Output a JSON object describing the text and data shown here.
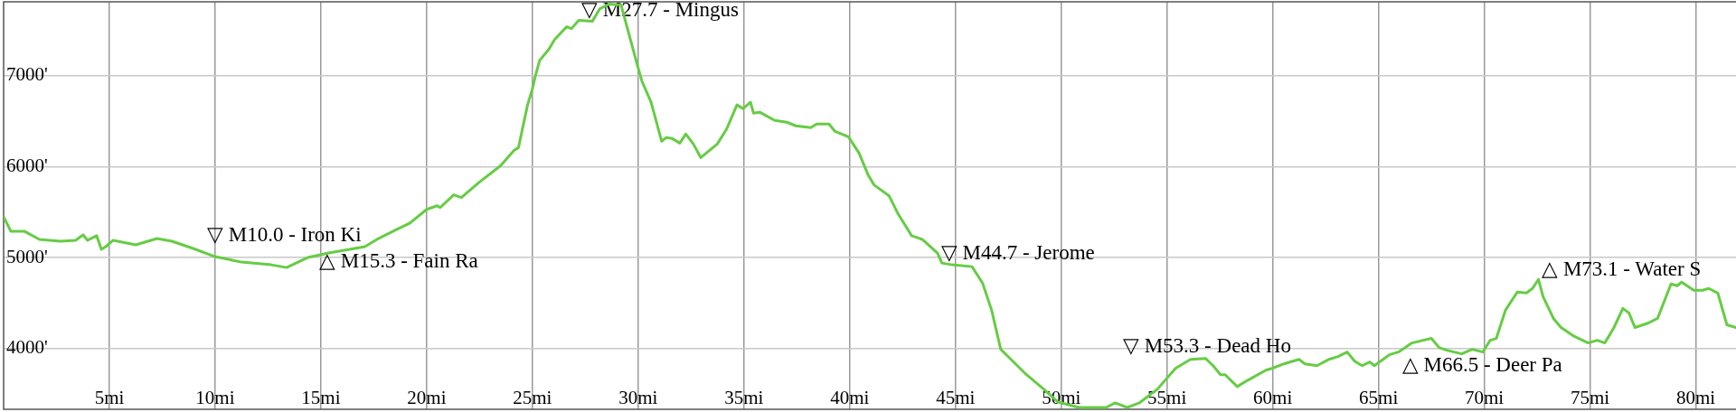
{
  "chart_data": {
    "type": "line",
    "x": [
      0,
      0.34,
      0.98,
      1.69,
      2.69,
      3.4,
      3.76,
      3.97,
      4.4,
      4.62,
      4.83,
      5.18,
      6.25,
      7.25,
      7.96,
      8.96,
      10,
      11.24,
      12.66,
      13.38,
      14.37,
      15.37,
      17.08,
      17.65,
      18.5,
      19.21,
      20,
      20.5,
      20.64,
      21.28,
      21.64,
      22.49,
      23.49,
      24.13,
      24.34,
      24.77,
      24.98,
      25.13,
      25.34,
      25.77,
      26.05,
      26.62,
      26.84,
      27.19,
      27.83,
      28.19,
      28.62,
      29.19,
      29.47,
      29.97,
      30.18,
      30.61,
      31.11,
      31.32,
      31.61,
      31.97,
      32.25,
      32.61,
      32.96,
      33.74,
      34.17,
      34.67,
      34.96,
      35.31,
      35.45,
      35.74,
      36.45,
      37.02,
      37.45,
      38.16,
      38.44,
      39.02,
      39.3,
      39.94,
      40.44,
      40.87,
      41.15,
      41.86,
      42.29,
      42.93,
      43.43,
      44.15,
      44.36,
      44.85,
      45.78,
      46.28,
      46.71,
      47.14,
      47.71,
      48.27,
      49.13,
      49.84,
      50.84,
      52.12,
      52.55,
      53.12,
      53.69,
      54.54,
      55.4,
      56.11,
      56.82,
      57.18,
      57.53,
      57.75,
      58.32,
      58.82,
      59.67,
      59.96,
      60.53,
      60.81,
      61.24,
      61.52,
      62.09,
      62.66,
      63.09,
      63.52,
      63.87,
      64.23,
      64.59,
      64.8,
      65.51,
      65.94,
      66.58,
      67.5,
      67.86,
      68.22,
      68.93,
      69.43,
      69.93,
      70.28,
      70.57,
      71,
      71.56,
      71.99,
      72.28,
      72.56,
      72.78,
      73.27,
      73.63,
      74.2,
      74.91,
      75.34,
      75.7,
      76.13,
      76.55,
      76.84,
      77.12,
      77.76,
      78.19,
      78.83,
      79.12,
      79.33,
      79.9,
      80.33,
      80.61,
      81.04,
      81.47,
      81.9
    ],
    "series": [
      {
        "color": "#66cc44",
        "values": [
          5450,
          5290,
          5290,
          5200,
          5180,
          5190,
          5250,
          5190,
          5240,
          5090,
          5120,
          5190,
          5140,
          5210,
          5180,
          5100,
          5010,
          4950,
          4920,
          4890,
          5000,
          5050,
          5120,
          5200,
          5300,
          5380,
          5530,
          5570,
          5550,
          5690,
          5660,
          5830,
          6010,
          6180,
          6210,
          6680,
          6840,
          6990,
          7170,
          7290,
          7400,
          7540,
          7520,
          7610,
          7600,
          7740,
          7790,
          7780,
          7540,
          7110,
          6940,
          6710,
          6280,
          6320,
          6310,
          6260,
          6360,
          6250,
          6100,
          6250,
          6410,
          6680,
          6640,
          6710,
          6590,
          6600,
          6510,
          6490,
          6450,
          6430,
          6470,
          6470,
          6390,
          6330,
          6150,
          5910,
          5800,
          5680,
          5480,
          5240,
          5200,
          5050,
          4940,
          4920,
          4900,
          4720,
          4420,
          3990,
          3860,
          3730,
          3560,
          3410,
          3350,
          3350,
          3400,
          3350,
          3400,
          3550,
          3780,
          3880,
          3890,
          3810,
          3710,
          3710,
          3580,
          3650,
          3760,
          3780,
          3830,
          3850,
          3880,
          3830,
          3810,
          3880,
          3910,
          3960,
          3860,
          3810,
          3850,
          3810,
          3930,
          3960,
          4060,
          4110,
          4010,
          3980,
          3940,
          3990,
          3960,
          4090,
          4110,
          4420,
          4620,
          4610,
          4660,
          4760,
          4570,
          4330,
          4230,
          4140,
          4060,
          4090,
          4060,
          4230,
          4440,
          4390,
          4230,
          4280,
          4330,
          4710,
          4690,
          4730,
          4640,
          4640,
          4660,
          4610,
          4260,
          4230
        ]
      }
    ],
    "xlim": [
      0,
      81.9
    ],
    "ylim": [
      3330,
      7815
    ],
    "xticks": [
      {
        "value": 5,
        "label": "5mi"
      },
      {
        "value": 10,
        "label": "10mi"
      },
      {
        "value": 15,
        "label": "15mi"
      },
      {
        "value": 20,
        "label": "20mi"
      },
      {
        "value": 25,
        "label": "25mi"
      },
      {
        "value": 30,
        "label": "30mi"
      },
      {
        "value": 35,
        "label": "35mi"
      },
      {
        "value": 40,
        "label": "40mi"
      },
      {
        "value": 45,
        "label": "45mi"
      },
      {
        "value": 50,
        "label": "50mi"
      },
      {
        "value": 55,
        "label": "55mi"
      },
      {
        "value": 60,
        "label": "60mi"
      },
      {
        "value": 65,
        "label": "65mi"
      },
      {
        "value": 70,
        "label": "70mi"
      },
      {
        "value": 75,
        "label": "75mi"
      },
      {
        "value": 80,
        "label": "80mi"
      }
    ],
    "yticks": [
      {
        "value": 4000,
        "label": "4000'"
      },
      {
        "value": 5000,
        "label": "5000'"
      },
      {
        "value": 6000,
        "label": "6000'"
      },
      {
        "value": 7000,
        "label": "7000'"
      }
    ],
    "grid": true,
    "annotations": [
      {
        "text": "▽ M10.0 - Iron Ki",
        "x": 10.0,
        "y": 5010
      },
      {
        "text": "△ M15.3 - Fain Ra",
        "x": 15.3,
        "y": 5040
      },
      {
        "text": "▽ M27.7 - Mingus",
        "x": 27.7,
        "y": 7610
      },
      {
        "text": "▽ M44.7 - Jerome",
        "x": 44.7,
        "y": 4920
      },
      {
        "text": "▽ M53.3 - Dead Ho",
        "x": 53.3,
        "y": 3360
      },
      {
        "text": "△ M66.5 - Deer Pa",
        "x": 66.5,
        "y": 4040
      },
      {
        "text": "△ M73.1 - Water S",
        "x": 73.1,
        "y": 4420
      }
    ]
  }
}
